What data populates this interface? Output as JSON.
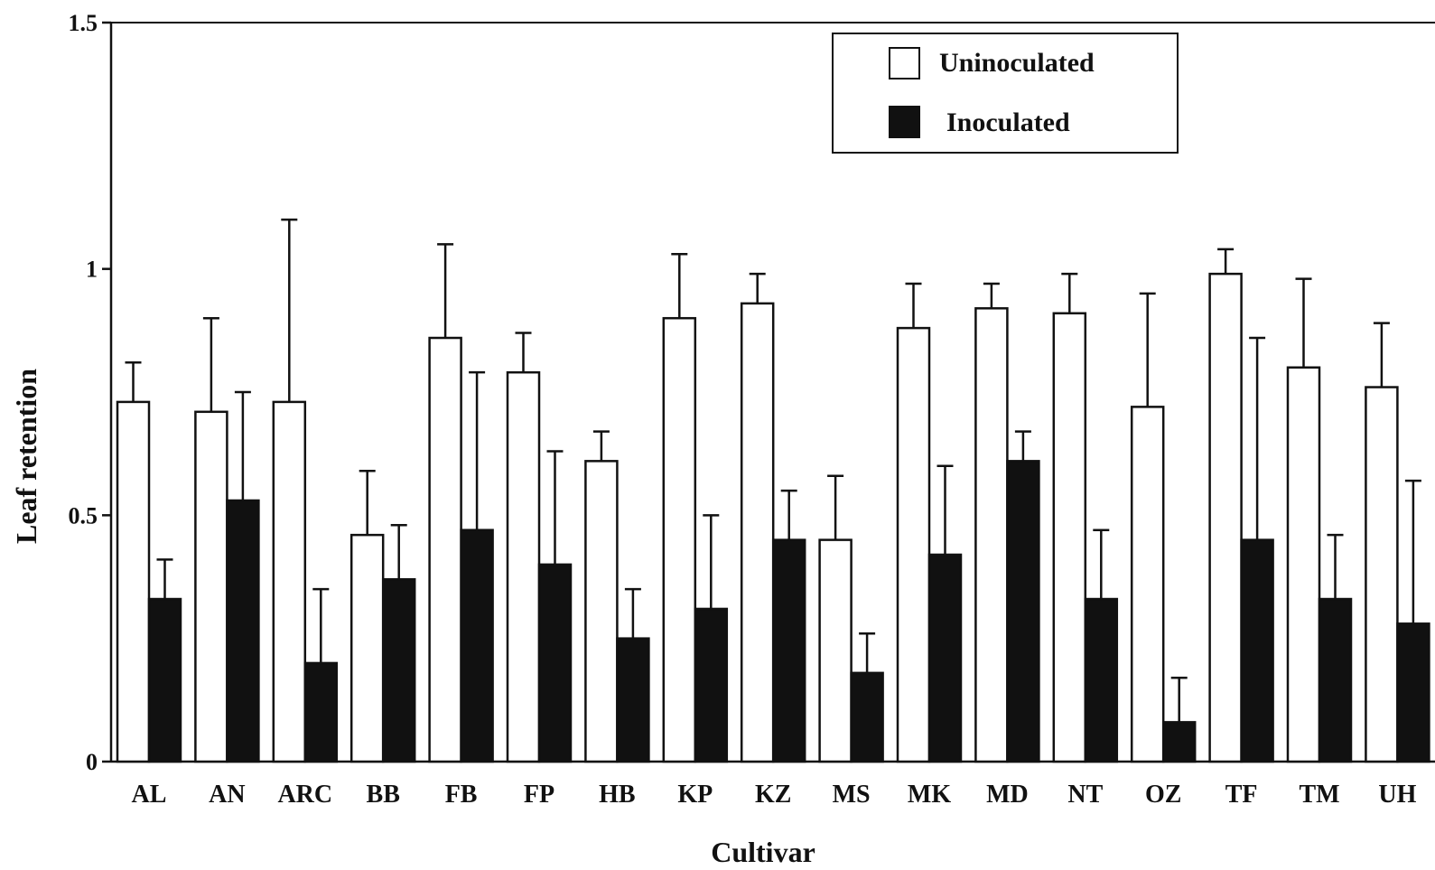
{
  "chart_data": {
    "type": "bar",
    "xlabel": "Cultivar",
    "ylabel": "Leaf retention",
    "ylim": [
      0,
      1.5
    ],
    "yticks": [
      {
        "value": 0,
        "label": "0"
      },
      {
        "value": 0.5,
        "label": "0.5"
      },
      {
        "value": 1,
        "label": "1"
      },
      {
        "value": 1.5,
        "label": "1.5"
      }
    ],
    "grid": false,
    "legend_position": "top-right",
    "categories": [
      "AL",
      "AN",
      "ARC",
      "BB",
      "FB",
      "FP",
      "HB",
      "KP",
      "KZ",
      "MS",
      "MK",
      "MD",
      "NT",
      "OZ",
      "TF",
      "TM",
      "UH"
    ],
    "series": [
      {
        "name": "Uninoculated",
        "color": "#ffffff",
        "values": [
          0.73,
          0.71,
          0.73,
          0.46,
          0.86,
          0.79,
          0.61,
          0.9,
          0.93,
          0.45,
          0.88,
          0.92,
          0.91,
          0.72,
          0.99,
          0.8,
          0.76
        ],
        "errors": [
          0.08,
          0.19,
          0.37,
          0.13,
          0.19,
          0.08,
          0.06,
          0.13,
          0.06,
          0.13,
          0.09,
          0.05,
          0.08,
          0.23,
          0.05,
          0.18,
          0.13
        ]
      },
      {
        "name": "Inoculated",
        "color": "#111111",
        "values": [
          0.33,
          0.53,
          0.2,
          0.37,
          0.47,
          0.4,
          0.25,
          0.31,
          0.45,
          0.18,
          0.42,
          0.61,
          0.33,
          0.08,
          0.45,
          0.33,
          0.28
        ],
        "errors": [
          0.08,
          0.22,
          0.15,
          0.11,
          0.32,
          0.23,
          0.1,
          0.19,
          0.1,
          0.08,
          0.18,
          0.06,
          0.14,
          0.09,
          0.41,
          0.13,
          0.29
        ]
      }
    ]
  }
}
